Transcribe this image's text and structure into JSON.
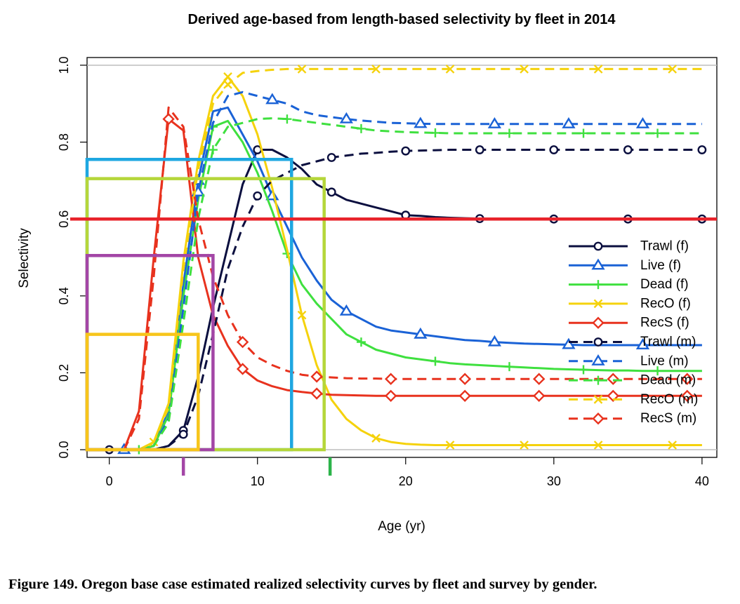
{
  "caption": "Figure 149.  Oregon base case estimated realized selectivity curves by fleet and survey by gender.",
  "chart_data": {
    "type": "line",
    "title": "Derived age-based from length-based selectivity by fleet in 2014",
    "xlabel": "Age (yr)",
    "ylabel": "Selectivity",
    "xlim": [
      -1.5,
      41
    ],
    "ylim": [
      -0.02,
      1.02
    ],
    "xticks": [
      0,
      10,
      20,
      30,
      40
    ],
    "yticks": [
      "0.0",
      "0.2",
      "0.4",
      "0.6",
      "0.8",
      "1.0"
    ],
    "grid": false,
    "legend_position": "right",
    "reference_lines": [
      {
        "axis": "y",
        "value": 0.0,
        "color": "#bebebe"
      },
      {
        "axis": "y",
        "value": 1.0,
        "color": "#bebebe"
      }
    ],
    "series": [
      {
        "name": "Trawl (f)",
        "color": "#0b0f3f",
        "dash": "solid",
        "marker": "circle",
        "marker_step": 5,
        "values": [
          0,
          0,
          0,
          0,
          0.01,
          0.05,
          0.19,
          0.37,
          0.53,
          0.69,
          0.78,
          0.78,
          0.76,
          0.73,
          0.69,
          0.67,
          0.65,
          0.64,
          0.63,
          0.62,
          0.61,
          0.608,
          0.605,
          0.603,
          0.602,
          0.601,
          0.6,
          0.6,
          0.6,
          0.6,
          0.6,
          0.6,
          0.6,
          0.6,
          0.6,
          0.6,
          0.6,
          0.6,
          0.6,
          0.6,
          0.6
        ]
      },
      {
        "name": "Live (f)",
        "color": "#1a62d6",
        "dash": "solid",
        "marker": "triangle",
        "marker_step": 5,
        "values": [
          0,
          0,
          0,
          0.01,
          0.1,
          0.43,
          0.7,
          0.88,
          0.89,
          0.82,
          0.75,
          0.66,
          0.58,
          0.5,
          0.44,
          0.39,
          0.36,
          0.34,
          0.32,
          0.31,
          0.305,
          0.3,
          0.295,
          0.29,
          0.285,
          0.283,
          0.28,
          0.278,
          0.276,
          0.275,
          0.274,
          0.273,
          0.272,
          0.272,
          0.272,
          0.272,
          0.272,
          0.272,
          0.272,
          0.272,
          0.272
        ]
      },
      {
        "name": "Dead (f)",
        "color": "#3fe03f",
        "dash": "solid",
        "marker": "plus",
        "marker_step": 5,
        "values": [
          0,
          0,
          0,
          0.01,
          0.09,
          0.4,
          0.65,
          0.84,
          0.855,
          0.8,
          0.72,
          0.62,
          0.51,
          0.43,
          0.38,
          0.34,
          0.3,
          0.28,
          0.26,
          0.25,
          0.24,
          0.235,
          0.23,
          0.225,
          0.222,
          0.22,
          0.218,
          0.216,
          0.214,
          0.212,
          0.21,
          0.209,
          0.208,
          0.207,
          0.206,
          0.206,
          0.205,
          0.205,
          0.205,
          0.205,
          0.205
        ]
      },
      {
        "name": "RecO (f)",
        "color": "#f5d20c",
        "dash": "solid",
        "marker": "x",
        "marker_step": 5,
        "values": [
          0,
          0,
          0,
          0.02,
          0.12,
          0.49,
          0.75,
          0.92,
          0.97,
          0.92,
          0.82,
          0.68,
          0.52,
          0.35,
          0.22,
          0.13,
          0.08,
          0.05,
          0.03,
          0.02,
          0.015,
          0.013,
          0.012,
          0.012,
          0.012,
          0.012,
          0.012,
          0.012,
          0.012,
          0.012,
          0.012,
          0.012,
          0.012,
          0.012,
          0.012,
          0.012,
          0.012,
          0.012,
          0.012,
          0.012,
          0.012
        ]
      },
      {
        "name": "RecS (f)",
        "color": "#e8321e",
        "dash": "solid",
        "marker": "diamond",
        "marker_step": 5,
        "values": [
          0,
          0,
          0.1,
          0.5,
          0.86,
          0.83,
          0.5,
          0.35,
          0.27,
          0.21,
          0.18,
          0.165,
          0.155,
          0.15,
          0.146,
          0.143,
          0.142,
          0.141,
          0.14,
          0.14,
          0.14,
          0.14,
          0.14,
          0.14,
          0.14,
          0.14,
          0.14,
          0.14,
          0.14,
          0.14,
          0.14,
          0.14,
          0.14,
          0.14,
          0.14,
          0.14,
          0.14,
          0.14,
          0.14,
          0.14,
          0.14
        ]
      },
      {
        "name": "Trawl (m)",
        "color": "#0b0f3f",
        "dash": "dashed",
        "marker": "circle",
        "marker_step": 5,
        "values": [
          0,
          0,
          0,
          0,
          0.01,
          0.04,
          0.14,
          0.3,
          0.47,
          0.58,
          0.66,
          0.7,
          0.72,
          0.74,
          0.75,
          0.76,
          0.765,
          0.77,
          0.772,
          0.775,
          0.777,
          0.778,
          0.779,
          0.78,
          0.78,
          0.78,
          0.78,
          0.78,
          0.78,
          0.78,
          0.78,
          0.78,
          0.78,
          0.78,
          0.78,
          0.78,
          0.78,
          0.78,
          0.78,
          0.78,
          0.78
        ]
      },
      {
        "name": "Live (m)",
        "color": "#1a62d6",
        "dash": "dashed",
        "marker": "triangle",
        "marker_step": 5,
        "values": [
          0,
          0,
          0,
          0.01,
          0.08,
          0.37,
          0.67,
          0.85,
          0.92,
          0.93,
          0.92,
          0.91,
          0.9,
          0.88,
          0.87,
          0.865,
          0.86,
          0.856,
          0.853,
          0.85,
          0.849,
          0.848,
          0.847,
          0.847,
          0.847,
          0.847,
          0.847,
          0.847,
          0.847,
          0.847,
          0.847,
          0.847,
          0.847,
          0.847,
          0.847,
          0.847,
          0.847,
          0.847,
          0.847,
          0.847,
          0.847
        ]
      },
      {
        "name": "Dead (m)",
        "color": "#3fe03f",
        "dash": "dashed",
        "marker": "plus",
        "marker_step": 5,
        "values": [
          0,
          0,
          0,
          0.01,
          0.07,
          0.33,
          0.6,
          0.78,
          0.84,
          0.85,
          0.86,
          0.862,
          0.86,
          0.855,
          0.85,
          0.845,
          0.84,
          0.835,
          0.83,
          0.828,
          0.826,
          0.825,
          0.824,
          0.823,
          0.823,
          0.823,
          0.823,
          0.823,
          0.823,
          0.823,
          0.823,
          0.823,
          0.823,
          0.823,
          0.823,
          0.823,
          0.823,
          0.823,
          0.823,
          0.823,
          0.823
        ]
      },
      {
        "name": "RecO (m)",
        "color": "#f5d20c",
        "dash": "dashed",
        "marker": "x",
        "marker_step": 5,
        "values": [
          0,
          0,
          0,
          0.02,
          0.11,
          0.47,
          0.73,
          0.9,
          0.95,
          0.98,
          0.985,
          0.988,
          0.99,
          0.99,
          0.99,
          0.99,
          0.99,
          0.99,
          0.99,
          0.99,
          0.99,
          0.99,
          0.99,
          0.99,
          0.99,
          0.99,
          0.99,
          0.99,
          0.99,
          0.99,
          0.99,
          0.99,
          0.99,
          0.99,
          0.99,
          0.99,
          0.99,
          0.99,
          0.99,
          0.99,
          0.99
        ]
      },
      {
        "name": "RecS (m)",
        "color": "#e8321e",
        "dash": "dashed",
        "marker": "diamond",
        "marker_step": 5,
        "values": [
          0,
          0,
          0.08,
          0.45,
          0.89,
          0.84,
          0.6,
          0.45,
          0.35,
          0.28,
          0.24,
          0.22,
          0.205,
          0.195,
          0.19,
          0.188,
          0.186,
          0.185,
          0.185,
          0.184,
          0.184,
          0.184,
          0.184,
          0.184,
          0.184,
          0.184,
          0.184,
          0.184,
          0.184,
          0.184,
          0.184,
          0.184,
          0.184,
          0.184,
          0.184,
          0.184,
          0.184,
          0.184,
          0.184,
          0.184,
          0.184
        ]
      }
    ],
    "annotations": {
      "color_legend": "#e8321e",
      "hline": {
        "value": 0.6,
        "color": "#e8232b"
      },
      "boxes": [
        {
          "x0": -1.5,
          "x1": 12.3,
          "y1": 0.755,
          "color": "#1ea7e1"
        },
        {
          "x0": -1.5,
          "x1": 14.5,
          "y1": 0.705,
          "color": "#b5d63a"
        },
        {
          "x0": -1.5,
          "x1": 7.0,
          "y1": 0.505,
          "color": "#a346a6"
        },
        {
          "x0": -1.5,
          "x1": 6.0,
          "y1": 0.3,
          "color": "#f7c51b"
        }
      ],
      "axis_ticks": [
        {
          "x": 5.0,
          "color": "#a346a6"
        },
        {
          "x": 14.9,
          "color": "#2cb34a"
        }
      ]
    }
  }
}
